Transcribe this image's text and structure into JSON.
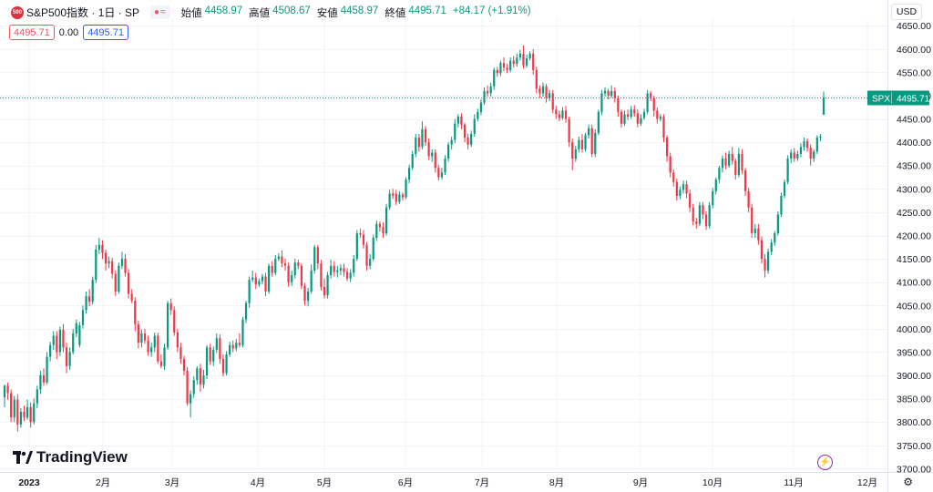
{
  "header": {
    "symbol_icon_text": "500",
    "title": "S&P500指数 · 1日 · SP",
    "badge_glyph": "≈",
    "ohlc": [
      {
        "label": "始値",
        "value": "4458.97"
      },
      {
        "label": "高値",
        "value": "4508.67"
      },
      {
        "label": "安値",
        "value": "4458.97"
      },
      {
        "label": "終値",
        "value": "4495.71"
      }
    ],
    "change": "+84.17 (+1.91%)",
    "sell_price": "4495.71",
    "spread": "0.00",
    "buy_price": "4495.71"
  },
  "currency": "USD",
  "brand": "TradingView",
  "price_tag": {
    "symbol": "SPX",
    "value": "4495.71"
  },
  "colors": {
    "up": "#089981",
    "down": "#f23645",
    "grid": "#f0f3fa",
    "tag": "#089981",
    "last_line": "#089981"
  },
  "icons": {
    "lightning": "lightning-icon",
    "settings": "gear-icon"
  },
  "chart_data": {
    "type": "candlestick",
    "title": "S&P500指数 · 1日 · SP",
    "ylim": [
      3700,
      4650
    ],
    "y_ticks": [
      3700,
      3750,
      3800,
      3850,
      3900,
      3950,
      4000,
      4050,
      4100,
      4150,
      4200,
      4250,
      4300,
      4350,
      4400,
      4450,
      4500,
      4550,
      4600,
      4650
    ],
    "x_ticks": [
      "2023",
      "2月",
      "3月",
      "4月",
      "5月",
      "6月",
      "7月",
      "8月",
      "9月",
      "10月",
      "11月",
      "12月"
    ],
    "last_price": 4495.71,
    "grid": true,
    "candles": [
      [
        3853,
        3878,
        3832,
        3880
      ],
      [
        3878,
        3862,
        3848,
        3885
      ],
      [
        3862,
        3810,
        3800,
        3870
      ],
      [
        3810,
        3848,
        3800,
        3856
      ],
      [
        3848,
        3795,
        3780,
        3860
      ],
      [
        3795,
        3822,
        3788,
        3830
      ],
      [
        3822,
        3810,
        3802,
        3835
      ],
      [
        3810,
        3832,
        3805,
        3848
      ],
      [
        3832,
        3800,
        3788,
        3842
      ],
      [
        3800,
        3840,
        3795,
        3850
      ],
      [
        3840,
        3870,
        3830,
        3878
      ],
      [
        3870,
        3900,
        3860,
        3910
      ],
      [
        3900,
        3885,
        3878,
        3915
      ],
      [
        3885,
        3940,
        3880,
        3950
      ],
      [
        3940,
        3965,
        3930,
        3972
      ],
      [
        3965,
        3985,
        3955,
        3995
      ],
      [
        3985,
        3950,
        3935,
        3995
      ],
      [
        3950,
        3998,
        3942,
        4005
      ],
      [
        3998,
        3960,
        3950,
        4010
      ],
      [
        3960,
        3920,
        3905,
        3970
      ],
      [
        3920,
        3950,
        3912,
        3960
      ],
      [
        3950,
        3990,
        3945,
        4000
      ],
      [
        3990,
        4012,
        3982,
        4020
      ],
      [
        3965,
        4008,
        3960,
        4015
      ],
      [
        4008,
        4040,
        4000,
        4050
      ],
      [
        4040,
        4070,
        4032,
        4080
      ],
      [
        4070,
        4058,
        4048,
        4085
      ],
      [
        4058,
        4105,
        4052,
        4112
      ],
      [
        4105,
        4170,
        4098,
        4180
      ],
      [
        4170,
        4180,
        4160,
        4195
      ],
      [
        4180,
        4163,
        4150,
        4190
      ],
      [
        4163,
        4140,
        4125,
        4170
      ],
      [
        4140,
        4145,
        4130,
        4155
      ],
      [
        4145,
        4118,
        4108,
        4152
      ],
      [
        4118,
        4080,
        4070,
        4125
      ],
      [
        4080,
        4135,
        4075,
        4142
      ],
      [
        4135,
        4150,
        4128,
        4165
      ],
      [
        4150,
        4120,
        4112,
        4160
      ],
      [
        4120,
        4075,
        4065,
        4128
      ],
      [
        4075,
        4060,
        4055,
        4085
      ],
      [
        4060,
        4010,
        3995,
        4068
      ],
      [
        4010,
        3970,
        3958,
        4018
      ],
      [
        3970,
        3990,
        3960,
        3998
      ],
      [
        3990,
        3975,
        3968,
        4000
      ],
      [
        3975,
        3950,
        3942,
        3985
      ],
      [
        3950,
        3960,
        3940,
        3970
      ],
      [
        3960,
        3985,
        3950,
        3992
      ],
      [
        3985,
        3930,
        3925,
        3992
      ],
      [
        3930,
        3920,
        3915,
        3945
      ],
      [
        3920,
        3960,
        3912,
        3968
      ],
      [
        3960,
        4055,
        3955,
        4060
      ],
      [
        4055,
        4040,
        4030,
        4065
      ],
      [
        4040,
        3992,
        3985,
        4048
      ],
      [
        3992,
        3960,
        3950,
        4000
      ],
      [
        3960,
        3935,
        3925,
        3970
      ],
      [
        3935,
        3910,
        3900,
        3942
      ],
      [
        3910,
        3840,
        3835,
        3918
      ],
      [
        3840,
        3860,
        3810,
        3868
      ],
      [
        3860,
        3890,
        3852,
        3898
      ],
      [
        3890,
        3915,
        3880,
        3920
      ],
      [
        3915,
        3880,
        3865,
        3925
      ],
      [
        3880,
        3900,
        3872,
        3912
      ],
      [
        3900,
        3960,
        3892,
        3965
      ],
      [
        3960,
        3930,
        3922,
        3968
      ],
      [
        3930,
        3955,
        3920,
        3962
      ],
      [
        3955,
        3980,
        3948,
        3990
      ],
      [
        3980,
        3935,
        3925,
        3988
      ],
      [
        3935,
        3905,
        3898,
        3945
      ],
      [
        3905,
        3945,
        3900,
        3952
      ],
      [
        3945,
        3965,
        3940,
        3972
      ],
      [
        3965,
        3958,
        3950,
        3975
      ],
      [
        3958,
        3970,
        3952,
        3978
      ],
      [
        3970,
        3965,
        3960,
        3990
      ],
      [
        3965,
        4020,
        3960,
        4025
      ],
      [
        4020,
        4055,
        4012,
        4060
      ],
      [
        4055,
        4105,
        4045,
        4112
      ],
      [
        4105,
        4110,
        4100,
        4125
      ],
      [
        4110,
        4095,
        4085,
        4120
      ],
      [
        4095,
        4102,
        4090,
        4108
      ],
      [
        4102,
        4112,
        4095,
        4118
      ],
      [
        4112,
        4080,
        4070,
        4120
      ],
      [
        4080,
        4135,
        4075,
        4140
      ],
      [
        4135,
        4120,
        4112,
        4145
      ],
      [
        4120,
        4150,
        4115,
        4158
      ],
      [
        4150,
        4155,
        4145,
        4162
      ],
      [
        4155,
        4140,
        4132,
        4168
      ],
      [
        4140,
        4135,
        4125,
        4150
      ],
      [
        4135,
        4100,
        4090,
        4142
      ],
      [
        4100,
        4115,
        4092,
        4125
      ],
      [
        4115,
        4142,
        4108,
        4150
      ],
      [
        4142,
        4135,
        4128,
        4148
      ],
      [
        4135,
        4092,
        4085,
        4140
      ],
      [
        4092,
        4060,
        4050,
        4098
      ],
      [
        4060,
        4080,
        4048,
        4088
      ],
      [
        4080,
        4125,
        4075,
        4138
      ],
      [
        4125,
        4175,
        4118,
        4180
      ],
      [
        4175,
        4140,
        4128,
        4180
      ],
      [
        4140,
        4090,
        4082,
        4148
      ],
      [
        4090,
        4072,
        4065,
        4108
      ],
      [
        4072,
        4115,
        4065,
        4122
      ],
      [
        4115,
        4135,
        4108,
        4148
      ],
      [
        4135,
        4122,
        4112,
        4145
      ],
      [
        4122,
        4125,
        4110,
        4135
      ],
      [
        4125,
        4130,
        4115,
        4138
      ],
      [
        4130,
        4122,
        4112,
        4140
      ],
      [
        4122,
        4108,
        4102,
        4130
      ],
      [
        4108,
        4120,
        4100,
        4128
      ],
      [
        4120,
        4150,
        4112,
        4158
      ],
      [
        4150,
        4205,
        4145,
        4212
      ],
      [
        4205,
        4202,
        4195,
        4215
      ],
      [
        4202,
        4180,
        4172,
        4212
      ],
      [
        4180,
        4135,
        4125,
        4186
      ],
      [
        4135,
        4150,
        4128,
        4160
      ],
      [
        4150,
        4195,
        4145,
        4202
      ],
      [
        4195,
        4225,
        4188,
        4232
      ],
      [
        4225,
        4218,
        4208,
        4230
      ],
      [
        4218,
        4205,
        4195,
        4228
      ],
      [
        4205,
        4260,
        4200,
        4268
      ],
      [
        4260,
        4290,
        4255,
        4298
      ],
      [
        4290,
        4285,
        4278,
        4300
      ],
      [
        4290,
        4272,
        4265,
        4298
      ],
      [
        4272,
        4288,
        4268,
        4295
      ],
      [
        4288,
        4282,
        4275,
        4292
      ],
      [
        4282,
        4320,
        4278,
        4325
      ],
      [
        4320,
        4345,
        4312,
        4352
      ],
      [
        4345,
        4375,
        4340,
        4382
      ],
      [
        4375,
        4410,
        4368,
        4418
      ],
      [
        4410,
        4390,
        4380,
        4418
      ],
      [
        4390,
        4428,
        4385,
        4445
      ],
      [
        4428,
        4400,
        4392,
        4435
      ],
      [
        4400,
        4370,
        4362,
        4408
      ],
      [
        4370,
        4378,
        4358,
        4385
      ],
      [
        4378,
        4345,
        4335,
        4385
      ],
      [
        4345,
        4325,
        4318,
        4352
      ],
      [
        4325,
        4335,
        4320,
        4345
      ],
      [
        4335,
        4365,
        4330,
        4372
      ],
      [
        4365,
        4395,
        4358,
        4400
      ],
      [
        4395,
        4405,
        4385,
        4412
      ],
      [
        4405,
        4440,
        4398,
        4450
      ],
      [
        4440,
        4455,
        4432,
        4460
      ],
      [
        4455,
        4438,
        4428,
        4462
      ],
      [
        4438,
        4410,
        4400,
        4442
      ],
      [
        4410,
        4395,
        4385,
        4418
      ],
      [
        4395,
        4418,
        4390,
        4425
      ],
      [
        4418,
        4450,
        4412,
        4460
      ],
      [
        4450,
        4465,
        4445,
        4472
      ],
      [
        4465,
        4485,
        4458,
        4492
      ],
      [
        4485,
        4510,
        4480,
        4518
      ],
      [
        4510,
        4505,
        4498,
        4522
      ],
      [
        4505,
        4520,
        4498,
        4528
      ],
      [
        4520,
        4555,
        4512,
        4560
      ],
      [
        4555,
        4548,
        4540,
        4562
      ],
      [
        4548,
        4570,
        4542,
        4575
      ],
      [
        4570,
        4560,
        4552,
        4582
      ],
      [
        4560,
        4555,
        4548,
        4568
      ],
      [
        4555,
        4575,
        4550,
        4582
      ],
      [
        4575,
        4568,
        4560,
        4585
      ],
      [
        4568,
        4582,
        4562,
        4590
      ],
      [
        4582,
        4590,
        4575,
        4598
      ],
      [
        4590,
        4565,
        4558,
        4608
      ],
      [
        4565,
        4580,
        4560,
        4588
      ],
      [
        4580,
        4590,
        4575,
        4595
      ],
      [
        4590,
        4555,
        4545,
        4600
      ],
      [
        4555,
        4515,
        4505,
        4562
      ],
      [
        4515,
        4505,
        4495,
        4522
      ],
      [
        4505,
        4520,
        4498,
        4528
      ],
      [
        4520,
        4495,
        4485,
        4525
      ],
      [
        4495,
        4505,
        4488,
        4512
      ],
      [
        4505,
        4470,
        4462,
        4512
      ],
      [
        4470,
        4460,
        4450,
        4478
      ],
      [
        4460,
        4452,
        4445,
        4468
      ],
      [
        4452,
        4468,
        4448,
        4475
      ],
      [
        4468,
        4450,
        4442,
        4478
      ],
      [
        4450,
        4400,
        4390,
        4455
      ],
      [
        4400,
        4365,
        4340,
        4408
      ],
      [
        4365,
        4385,
        4358,
        4392
      ],
      [
        4385,
        4405,
        4378,
        4412
      ],
      [
        4405,
        4385,
        4378,
        4418
      ],
      [
        4385,
        4415,
        4380,
        4420
      ],
      [
        4415,
        4430,
        4408,
        4438
      ],
      [
        4430,
        4375,
        4368,
        4438
      ],
      [
        4375,
        4420,
        4368,
        4428
      ],
      [
        4420,
        4465,
        4415,
        4470
      ],
      [
        4465,
        4505,
        4458,
        4512
      ],
      [
        4505,
        4510,
        4498,
        4518
      ],
      [
        4510,
        4500,
        4492,
        4515
      ],
      [
        4500,
        4510,
        4495,
        4522
      ],
      [
        4510,
        4495,
        4485,
        4518
      ],
      [
        4495,
        4465,
        4455,
        4500
      ],
      [
        4465,
        4440,
        4432,
        4470
      ],
      [
        4440,
        4460,
        4435,
        4468
      ],
      [
        4460,
        4455,
        4448,
        4470
      ],
      [
        4455,
        4470,
        4450,
        4478
      ],
      [
        4470,
        4462,
        4455,
        4480
      ],
      [
        4462,
        4440,
        4432,
        4470
      ],
      [
        4440,
        4452,
        4435,
        4460
      ],
      [
        4452,
        4465,
        4448,
        4472
      ],
      [
        4465,
        4505,
        4460,
        4512
      ],
      [
        4505,
        4495,
        4488,
        4510
      ],
      [
        4495,
        4468,
        4455,
        4500
      ],
      [
        4468,
        4450,
        4440,
        4475
      ],
      [
        4450,
        4455,
        4445,
        4460
      ],
      [
        4455,
        4410,
        4400,
        4460
      ],
      [
        4410,
        4370,
        4358,
        4415
      ],
      [
        4370,
        4335,
        4325,
        4378
      ],
      [
        4335,
        4315,
        4305,
        4342
      ],
      [
        4315,
        4285,
        4275,
        4322
      ],
      [
        4285,
        4298,
        4278,
        4305
      ],
      [
        4298,
        4310,
        4290,
        4318
      ],
      [
        4310,
        4290,
        4280,
        4318
      ],
      [
        4290,
        4260,
        4250,
        4298
      ],
      [
        4260,
        4230,
        4222,
        4268
      ],
      [
        4230,
        4225,
        4215,
        4238
      ],
      [
        4225,
        4265,
        4220,
        4272
      ],
      [
        4265,
        4245,
        4235,
        4272
      ],
      [
        4245,
        4220,
        4212,
        4252
      ],
      [
        4220,
        4265,
        4215,
        4272
      ],
      [
        4265,
        4295,
        4258,
        4302
      ],
      [
        4295,
        4320,
        4288,
        4325
      ],
      [
        4320,
        4345,
        4312,
        4350
      ],
      [
        4345,
        4365,
        4335,
        4372
      ],
      [
        4365,
        4350,
        4342,
        4378
      ],
      [
        4350,
        4375,
        4345,
        4382
      ],
      [
        4375,
        4360,
        4352,
        4390
      ],
      [
        4360,
        4330,
        4320,
        4365
      ],
      [
        4330,
        4375,
        4325,
        4388
      ],
      [
        4375,
        4340,
        4332,
        4385
      ],
      [
        4340,
        4295,
        4285,
        4345
      ],
      [
        4295,
        4260,
        4250,
        4302
      ],
      [
        4260,
        4205,
        4195,
        4268
      ],
      [
        4205,
        4215,
        4195,
        4225
      ],
      [
        4215,
        4190,
        4180,
        4225
      ],
      [
        4190,
        4150,
        4140,
        4198
      ],
      [
        4150,
        4125,
        4110,
        4160
      ],
      [
        4125,
        4165,
        4118,
        4172
      ],
      [
        4165,
        4185,
        4158,
        4192
      ],
      [
        4185,
        4205,
        4178,
        4210
      ],
      [
        4205,
        4245,
        4200,
        4252
      ],
      [
        4245,
        4285,
        4240,
        4292
      ],
      [
        4285,
        4315,
        4280,
        4320
      ],
      [
        4315,
        4365,
        4310,
        4372
      ],
      [
        4365,
        4378,
        4355,
        4385
      ],
      [
        4378,
        4365,
        4358,
        4388
      ],
      [
        4365,
        4375,
        4360,
        4382
      ],
      [
        4375,
        4390,
        4368,
        4398
      ],
      [
        4390,
        4402,
        4382,
        4410
      ],
      [
        4402,
        4388,
        4380,
        4408
      ],
      [
        4388,
        4365,
        4350,
        4395
      ],
      [
        4365,
        4380,
        4358,
        4385
      ],
      [
        4380,
        4410,
        4375,
        4415
      ],
      [
        4410,
        4412,
        4402,
        4418
      ],
      [
        4458.97,
        4495.71,
        4458.97,
        4508.67
      ]
    ]
  }
}
